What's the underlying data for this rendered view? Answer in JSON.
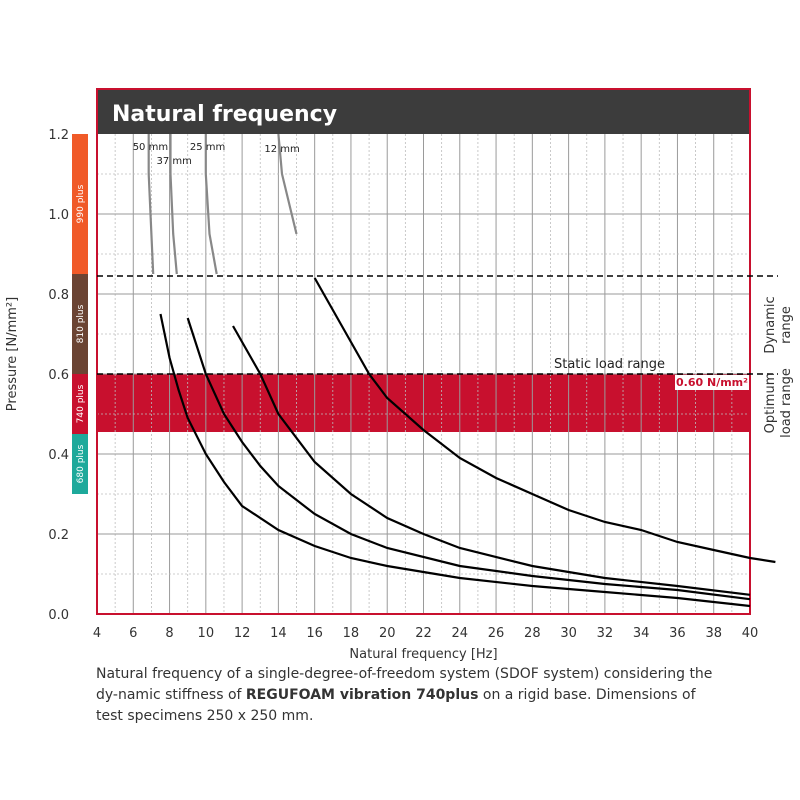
{
  "chart_data": {
    "type": "line",
    "title": "Natural frequency",
    "xlabel": "Natural frequency [Hz]",
    "ylabel": "Pressure [N/mm²]",
    "xlim": [
      4,
      40
    ],
    "ylim": [
      0,
      1.2
    ],
    "x_ticks": [
      "4",
      "6",
      "8",
      "10",
      "12",
      "14",
      "16",
      "18",
      "20",
      "22",
      "24",
      "26",
      "28",
      "30",
      "32",
      "34",
      "36",
      "38",
      "40"
    ],
    "y_ticks": [
      "0.0",
      "0.2",
      "0.4",
      "0.6",
      "0.8",
      "1.0",
      "1.2"
    ],
    "grid": true,
    "series": [
      {
        "name": "50 mm",
        "points": [
          [
            6.85,
            1.2
          ],
          [
            6.85,
            1.1
          ],
          [
            7.0,
            0.95
          ],
          [
            7.1,
            0.85
          ],
          [
            7.5,
            0.75
          ],
          [
            8.0,
            0.64
          ],
          [
            8.5,
            0.56
          ],
          [
            9.0,
            0.49
          ],
          [
            10,
            0.4
          ],
          [
            11,
            0.33
          ],
          [
            12,
            0.27
          ],
          [
            14,
            0.21
          ],
          [
            16,
            0.17
          ],
          [
            18,
            0.14
          ],
          [
            20,
            0.12
          ],
          [
            24,
            0.09
          ],
          [
            28,
            0.07
          ],
          [
            32,
            0.055
          ],
          [
            36,
            0.04
          ],
          [
            40,
            0.02
          ]
        ]
      },
      {
        "name": "37 mm",
        "points": [
          [
            8.05,
            1.2
          ],
          [
            8.05,
            1.1
          ],
          [
            8.2,
            0.95
          ],
          [
            8.4,
            0.85
          ],
          [
            9.0,
            0.74
          ],
          [
            10,
            0.6
          ],
          [
            11,
            0.5
          ],
          [
            12,
            0.43
          ],
          [
            13,
            0.37
          ],
          [
            14,
            0.32
          ],
          [
            16,
            0.25
          ],
          [
            18,
            0.2
          ],
          [
            20,
            0.165
          ],
          [
            24,
            0.12
          ],
          [
            28,
            0.095
          ],
          [
            32,
            0.075
          ],
          [
            36,
            0.06
          ],
          [
            40,
            0.037
          ]
        ]
      },
      {
        "name": "25 mm",
        "points": [
          [
            10.0,
            1.2
          ],
          [
            10.0,
            1.1
          ],
          [
            10.2,
            0.95
          ],
          [
            10.6,
            0.85
          ],
          [
            11.5,
            0.72
          ],
          [
            13,
            0.6
          ],
          [
            14,
            0.5
          ],
          [
            16,
            0.38
          ],
          [
            18,
            0.3
          ],
          [
            20,
            0.24
          ],
          [
            22,
            0.2
          ],
          [
            24,
            0.165
          ],
          [
            28,
            0.12
          ],
          [
            32,
            0.09
          ],
          [
            36,
            0.07
          ],
          [
            40,
            0.048
          ]
        ]
      },
      {
        "name": "12 mm",
        "points": [
          [
            14.0,
            1.2
          ],
          [
            14.2,
            1.1
          ],
          [
            15,
            0.95
          ],
          [
            16,
            0.84
          ],
          [
            17.5,
            0.72
          ],
          [
            19,
            0.6
          ],
          [
            20,
            0.54
          ],
          [
            22,
            0.46
          ],
          [
            24,
            0.39
          ],
          [
            26,
            0.34
          ],
          [
            28,
            0.3
          ],
          [
            30,
            0.26
          ],
          [
            32,
            0.23
          ],
          [
            34,
            0.21
          ],
          [
            36,
            0.18
          ],
          [
            38,
            0.16
          ],
          [
            40,
            0.14
          ],
          [
            41.4,
            0.13
          ]
        ]
      }
    ],
    "reference_lines": [
      {
        "label": "Static load range",
        "y": 0.6,
        "style": "dashed"
      },
      {
        "label": "",
        "y": 0.845,
        "style": "dashed"
      }
    ],
    "bands": [
      {
        "label": "0.60 N/mm²",
        "from": 0.455,
        "to": 0.6,
        "color": "#c8102e"
      }
    ],
    "side_labels": [
      {
        "text": [
          "Dynamic",
          "range"
        ],
        "y_from": 0.6,
        "y_to": 0.845
      },
      {
        "text": [
          "Optimum",
          "load range"
        ],
        "y_from": 0.455,
        "y_to": 0.6
      }
    ],
    "product_bar": [
      {
        "label": "990 plus",
        "from": 0.85,
        "to": 1.2,
        "color": "#f05a28"
      },
      {
        "label": "810 plus",
        "from": 0.6,
        "to": 0.85,
        "color": "#6b4433"
      },
      {
        "label": "740 plus",
        "from": 0.45,
        "to": 0.6,
        "color": "#c8102e"
      },
      {
        "label": "680 plus",
        "from": 0.3,
        "to": 0.45,
        "color": "#1ea99b"
      }
    ],
    "colors": {
      "frame": "#c8102e",
      "header": "#3c3c3c",
      "curve": "#000000",
      "curve_upper": "#888888",
      "grid": "#9a9a9a"
    }
  },
  "caption": {
    "text_1": "Natural frequency of a single-degree-of-freedom system (SDOF system) considering the dy-namic stiffness of ",
    "bold": "REGUFOAM vibration 740plus",
    "text_2": "  on a rigid base. Dimensions of test specimens 250 x 250 mm."
  }
}
